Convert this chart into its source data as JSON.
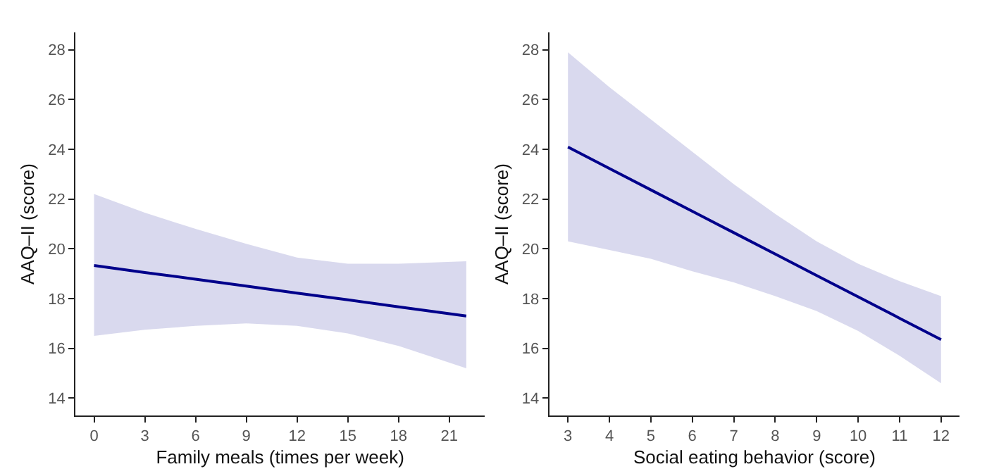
{
  "chart_data": [
    {
      "type": "line",
      "xlabel": "Family meals (times per week)",
      "ylabel": "AAQ–II (score)",
      "xlim": [
        -1.1,
        23.1
      ],
      "xticks": [
        0,
        3,
        6,
        9,
        12,
        15,
        18,
        21
      ],
      "ylim": [
        13.3,
        28.7
      ],
      "yticks": [
        14,
        16,
        18,
        20,
        22,
        24,
        26,
        28
      ],
      "marker": "none",
      "line_style": "solid",
      "series": [
        {
          "color": "#00008b",
          "x": [
            0,
            3,
            6,
            9,
            12,
            15,
            18,
            22
          ],
          "values": [
            19.33,
            19.05,
            18.78,
            18.5,
            18.22,
            17.95,
            17.67,
            17.3
          ],
          "lower": [
            16.5,
            16.75,
            16.9,
            17.0,
            16.9,
            16.6,
            16.1,
            15.2
          ],
          "upper": [
            22.2,
            21.45,
            20.8,
            20.2,
            19.65,
            19.4,
            19.4,
            19.5
          ]
        }
      ]
    },
    {
      "type": "line",
      "xlabel": "Social eating behavior (score)",
      "ylabel": "AAQ–II (score)",
      "xlim": [
        2.55,
        12.45
      ],
      "xticks": [
        3,
        4,
        5,
        6,
        7,
        8,
        9,
        10,
        11,
        12
      ],
      "ylim": [
        13.3,
        28.7
      ],
      "yticks": [
        14,
        16,
        18,
        20,
        22,
        24,
        26,
        28
      ],
      "marker": "none",
      "line_style": "solid",
      "series": [
        {
          "color": "#00008b",
          "x": [
            3,
            4,
            5,
            6,
            7,
            8,
            9,
            10,
            11,
            12
          ],
          "values": [
            24.09,
            23.23,
            22.37,
            21.51,
            20.65,
            19.79,
            18.93,
            18.07,
            17.21,
            16.35
          ],
          "lower": [
            20.3,
            19.95,
            19.6,
            19.1,
            18.65,
            18.1,
            17.5,
            16.7,
            15.7,
            14.6
          ],
          "upper": [
            27.9,
            26.5,
            25.2,
            23.9,
            22.6,
            21.4,
            20.3,
            19.4,
            18.7,
            18.1
          ]
        }
      ]
    }
  ]
}
